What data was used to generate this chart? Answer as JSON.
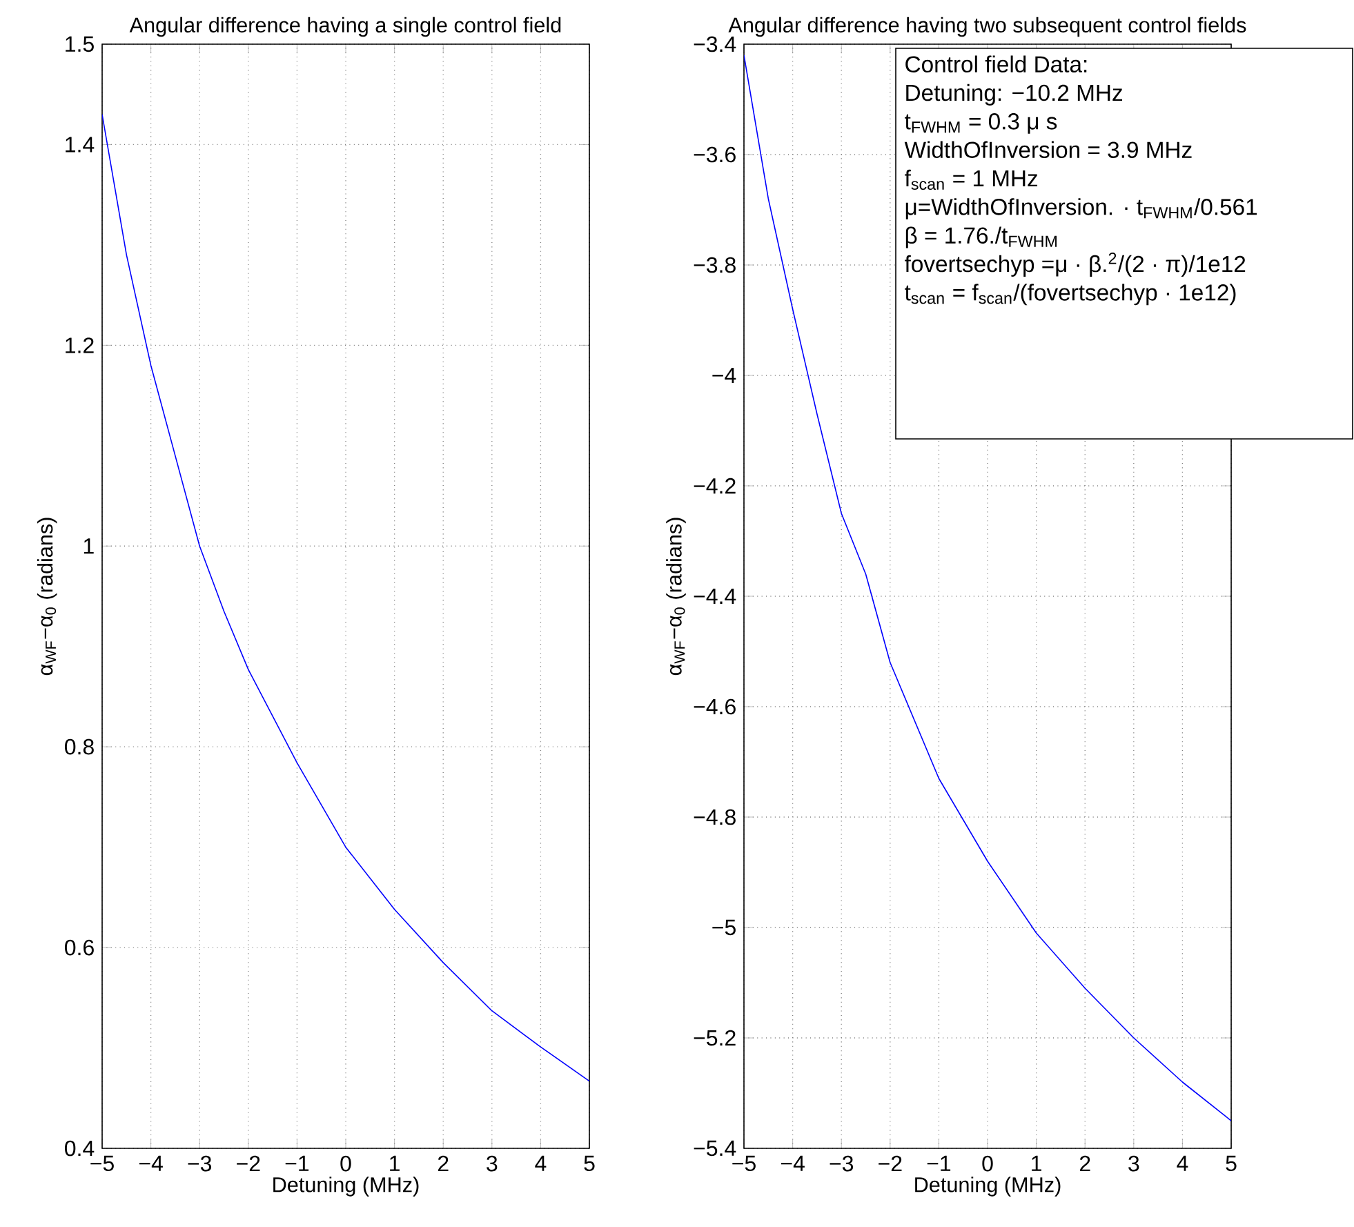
{
  "chart_data": [
    {
      "type": "line",
      "title": "Angular difference having a single control field",
      "xlabel": "Detuning (MHz)",
      "ylabel": "α$_{WF}$−α$_{0}$ (radians)",
      "x": [
        -5,
        -4.5,
        -4,
        -3.5,
        -3,
        -2.5,
        -2,
        -1,
        0,
        1,
        2,
        3,
        4,
        5
      ],
      "values": [
        1.43,
        1.29,
        1.18,
        1.09,
        1.0,
        0.935,
        0.877,
        0.784,
        0.7,
        0.638,
        0.585,
        0.537,
        0.501,
        0.467
      ],
      "color": "#0000ff",
      "xlim": [
        -5,
        5
      ],
      "ylim": [
        0.4,
        1.5
      ],
      "xticks": [
        {
          "value": -5,
          "label": "−5"
        },
        {
          "value": -4,
          "label": "−4"
        },
        {
          "value": -3,
          "label": "−3"
        },
        {
          "value": -2,
          "label": "−2"
        },
        {
          "value": -1,
          "label": "−1"
        },
        0,
        1,
        2,
        3,
        4,
        5
      ],
      "yticks": [
        0.4,
        0.6,
        0.8,
        1,
        1.2,
        1.4,
        1.5
      ],
      "grid": true
    },
    {
      "type": "line",
      "title": "Angular difference having two subsequent control fields",
      "xlabel": "Detuning (MHz)",
      "ylabel": "α$_{WF}$−α$_{0}$ (radians)",
      "x": [
        -5,
        -4.5,
        -4,
        -3.5,
        -3,
        -2.5,
        -2,
        -1,
        0,
        1,
        2,
        3,
        4,
        5
      ],
      "values": [
        -3.42,
        -3.68,
        -3.88,
        -4.07,
        -4.25,
        -4.36,
        -4.52,
        -4.73,
        -4.88,
        -5.01,
        -5.11,
        -5.2,
        -5.28,
        -5.35
      ],
      "color": "#0000ff",
      "xlim": [
        -5,
        5
      ],
      "ylim": [
        -5.4,
        -3.4
      ],
      "xticks": [
        {
          "value": -5,
          "label": "−5"
        },
        {
          "value": -4,
          "label": "−4"
        },
        {
          "value": -3,
          "label": "−3"
        },
        {
          "value": -2,
          "label": "−2"
        },
        {
          "value": -1,
          "label": "−1"
        },
        0,
        1,
        2,
        3,
        4,
        5
      ],
      "yticks": [
        {
          "value": -5.4,
          "label": "−5.4"
        },
        {
          "value": -5.2,
          "label": "−5.2"
        },
        {
          "value": -5,
          "label": "−5"
        },
        {
          "value": -4.8,
          "label": "−4.8"
        },
        {
          "value": -4.6,
          "label": "−4.6"
        },
        {
          "value": -4.4,
          "label": "−4.4"
        },
        {
          "value": -4.2,
          "label": "−4.2"
        },
        {
          "value": -4,
          "label": "−4"
        },
        {
          "value": -3.8,
          "label": "−3.8"
        },
        {
          "value": -3.6,
          "label": "−3.6"
        },
        {
          "value": -3.4,
          "label": "−3.4"
        }
      ],
      "grid": true,
      "annotations": [
        "Control field Data:",
        "Detuning: −10.2 MHz",
        "t$_{FWHM}$ = 0.3 μ s",
        "WidthOfInversion = 3.9 MHz",
        "f$_{scan}$ = 1 MHz",
        "μ=WidthOfInversion. · t$_{FWHM}$/0.561",
        "β = 1.76./t$_{FWHM}$",
        "fovertsechyp =μ · β.$^{2}$/(2 · π)/1e12",
        "t$_{scan}$ = f$_{scan}$/(fovertsechyp · 1e12)"
      ]
    }
  ]
}
